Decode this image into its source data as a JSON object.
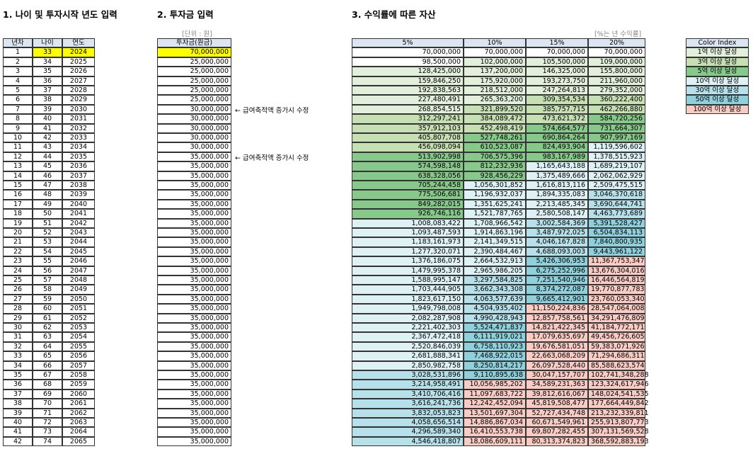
{
  "section1": {
    "title": "1. 나이 및 투자시작 년도 입력",
    "headers": [
      "년차",
      "나이",
      "연도"
    ],
    "rows": [
      [
        "1",
        "33",
        "2024"
      ],
      [
        "2",
        "34",
        "2025"
      ],
      [
        "3",
        "35",
        "2026"
      ],
      [
        "4",
        "36",
        "2027"
      ],
      [
        "5",
        "37",
        "2028"
      ],
      [
        "6",
        "38",
        "2029"
      ],
      [
        "7",
        "39",
        "2030"
      ],
      [
        "8",
        "40",
        "2031"
      ],
      [
        "9",
        "41",
        "2032"
      ],
      [
        "10",
        "42",
        "2033"
      ],
      [
        "11",
        "43",
        "2034"
      ],
      [
        "12",
        "44",
        "2035"
      ],
      [
        "13",
        "45",
        "2036"
      ],
      [
        "14",
        "46",
        "2037"
      ],
      [
        "15",
        "47",
        "2038"
      ],
      [
        "16",
        "48",
        "2039"
      ],
      [
        "17",
        "49",
        "2040"
      ],
      [
        "18",
        "50",
        "2041"
      ],
      [
        "19",
        "51",
        "2042"
      ],
      [
        "20",
        "52",
        "2043"
      ],
      [
        "21",
        "53",
        "2044"
      ],
      [
        "22",
        "54",
        "2045"
      ],
      [
        "23",
        "55",
        "2046"
      ],
      [
        "24",
        "56",
        "2047"
      ],
      [
        "25",
        "57",
        "2048"
      ],
      [
        "26",
        "58",
        "2049"
      ],
      [
        "27",
        "59",
        "2050"
      ],
      [
        "28",
        "60",
        "2051"
      ],
      [
        "29",
        "61",
        "2052"
      ],
      [
        "30",
        "62",
        "2053"
      ],
      [
        "31",
        "63",
        "2054"
      ],
      [
        "32",
        "64",
        "2055"
      ],
      [
        "33",
        "65",
        "2056"
      ],
      [
        "34",
        "66",
        "2057"
      ],
      [
        "35",
        "67",
        "2058"
      ],
      [
        "36",
        "68",
        "2059"
      ],
      [
        "37",
        "69",
        "2060"
      ],
      [
        "38",
        "70",
        "2061"
      ],
      [
        "39",
        "71",
        "2062"
      ],
      [
        "40",
        "72",
        "2063"
      ],
      [
        "41",
        "73",
        "2064"
      ],
      [
        "42",
        "74",
        "2065"
      ]
    ]
  },
  "section2": {
    "title": "2. 투자금 입력",
    "unit": "[단위 : 원]",
    "header": "투자금(원금)",
    "rows": [
      {
        "amount": "70,000,000"
      },
      {
        "amount": "25,000,000"
      },
      {
        "amount": "25,000,000"
      },
      {
        "amount": "25,000,000"
      },
      {
        "amount": "25,000,000"
      },
      {
        "amount": "25,000,000"
      },
      {
        "amount": "30,000,000",
        "note": "← 급여축적액 증가시 수정"
      },
      {
        "amount": "30,000,000"
      },
      {
        "amount": "30,000,000"
      },
      {
        "amount": "30,000,000"
      },
      {
        "amount": "30,000,000"
      },
      {
        "amount": "35,000,000",
        "note": "← 급여축적액 증가시 수정"
      },
      {
        "amount": "35,000,000"
      },
      {
        "amount": "35,000,000"
      },
      {
        "amount": "35,000,000"
      },
      {
        "amount": "35,000,000"
      },
      {
        "amount": "35,000,000"
      },
      {
        "amount": "35,000,000"
      },
      {
        "amount": "35,000,000"
      },
      {
        "amount": "35,000,000"
      },
      {
        "amount": "35,000,000"
      },
      {
        "amount": "35,000,000"
      },
      {
        "amount": "35,000,000"
      },
      {
        "amount": "35,000,000"
      },
      {
        "amount": "35,000,000"
      },
      {
        "amount": "35,000,000"
      },
      {
        "amount": "35,000,000"
      },
      {
        "amount": "35,000,000"
      },
      {
        "amount": "35,000,000"
      },
      {
        "amount": "35,000,000"
      },
      {
        "amount": "35,000,000"
      },
      {
        "amount": "35,000,000"
      },
      {
        "amount": "35,000,000"
      },
      {
        "amount": "35,000,000"
      },
      {
        "amount": "35,000,000"
      },
      {
        "amount": "35,000,000"
      },
      {
        "amount": "35,000,000"
      },
      {
        "amount": "35,000,000"
      },
      {
        "amount": "35,000,000"
      },
      {
        "amount": "35,000,000"
      },
      {
        "amount": "35,000,000"
      },
      {
        "amount": "35,000,000"
      }
    ]
  },
  "section3": {
    "title": "3. 수익률에 따른 자산",
    "unit": "[%는 년 수익률]",
    "headers": [
      "5%",
      "10%",
      "15%",
      "20%"
    ],
    "rows": [
      [
        "70,000,000",
        "70,000,000",
        "70,000,000",
        "70,000,000"
      ],
      [
        "98,500,000",
        "102,000,000",
        "105,500,000",
        "109,000,000"
      ],
      [
        "128,425,000",
        "137,200,000",
        "146,325,000",
        "155,800,000"
      ],
      [
        "159,846,250",
        "175,920,000",
        "193,273,750",
        "211,960,000"
      ],
      [
        "192,838,563",
        "218,512,000",
        "247,264,813",
        "279,352,000"
      ],
      [
        "227,480,491",
        "265,363,200",
        "309,354,534",
        "360,222,400"
      ],
      [
        "268,854,515",
        "321,899,520",
        "385,757,715",
        "462,266,880"
      ],
      [
        "312,297,241",
        "384,089,472",
        "473,621,372",
        "584,720,256"
      ],
      [
        "357,912,103",
        "452,498,419",
        "574,664,577",
        "731,664,307"
      ],
      [
        "405,807,708",
        "527,748,261",
        "690,864,264",
        "907,997,169"
      ],
      [
        "456,098,094",
        "610,523,087",
        "824,493,904",
        "1,119,596,602"
      ],
      [
        "513,902,998",
        "706,575,396",
        "983,167,989",
        "1,378,515,923"
      ],
      [
        "574,598,148",
        "812,232,936",
        "1,165,643,188",
        "1,689,219,107"
      ],
      [
        "638,328,056",
        "928,456,229",
        "1,375,489,666",
        "2,062,062,929"
      ],
      [
        "705,244,458",
        "1,056,301,852",
        "1,616,813,116",
        "2,509,475,515"
      ],
      [
        "775,506,681",
        "1,196,932,037",
        "1,894,335,083",
        "3,046,370,618"
      ],
      [
        "849,282,015",
        "1,351,625,241",
        "2,213,485,345",
        "3,690,644,741"
      ],
      [
        "926,746,116",
        "1,521,787,765",
        "2,580,508,147",
        "4,463,773,689"
      ],
      [
        "1,008,083,422",
        "1,708,966,542",
        "3,002,584,369",
        "5,391,528,427"
      ],
      [
        "1,093,487,593",
        "1,914,863,196",
        "3,487,972,025",
        "6,504,834,113"
      ],
      [
        "1,183,161,973",
        "2,141,349,515",
        "4,046,167,828",
        "7,840,800,935"
      ],
      [
        "1,277,320,071",
        "2,390,484,467",
        "4,688,093,003",
        "9,443,961,122"
      ],
      [
        "1,376,186,075",
        "2,664,532,913",
        "5,426,306,953",
        "11,367,753,347"
      ],
      [
        "1,479,995,378",
        "2,965,986,205",
        "6,275,252,996",
        "13,676,304,016"
      ],
      [
        "1,588,995,147",
        "3,297,584,825",
        "7,251,540,946",
        "16,446,564,819"
      ],
      [
        "1,703,444,905",
        "3,662,343,308",
        "8,374,272,087",
        "19,770,877,783"
      ],
      [
        "1,823,617,150",
        "4,063,577,639",
        "9,665,412,901",
        "23,760,053,340"
      ],
      [
        "1,949,798,008",
        "4,504,935,402",
        "11,150,224,836",
        "28,547,064,008"
      ],
      [
        "2,082,287,908",
        "4,990,428,943",
        "12,857,758,561",
        "34,291,476,809"
      ],
      [
        "2,221,402,303",
        "5,524,471,837",
        "14,821,422,345",
        "41,184,772,171"
      ],
      [
        "2,367,472,418",
        "6,111,919,021",
        "17,079,635,697",
        "49,456,726,605"
      ],
      [
        "2,520,846,039",
        "6,758,110,923",
        "19,676,581,051",
        "59,383,071,926"
      ],
      [
        "2,681,888,341",
        "7,468,922,015",
        "22,663,068,209",
        "71,294,686,311"
      ],
      [
        "2,850,982,758",
        "8,250,814,217",
        "26,097,528,440",
        "85,588,623,574"
      ],
      [
        "3,028,531,896",
        "9,110,895,638",
        "30,047,157,707",
        "102,741,348,288"
      ],
      [
        "3,214,958,491",
        "10,056,985,202",
        "34,589,231,363",
        "123,324,617,946"
      ],
      [
        "3,410,706,416",
        "11,097,683,722",
        "39,812,616,067",
        "148,024,541,535"
      ],
      [
        "3,616,241,736",
        "12,242,452,094",
        "45,819,508,477",
        "177,664,449,842"
      ],
      [
        "3,832,053,823",
        "13,501,697,304",
        "52,727,434,748",
        "213,232,339,811"
      ],
      [
        "4,058,656,514",
        "14,886,867,034",
        "60,671,549,961",
        "255,913,807,773"
      ],
      [
        "4,296,589,340",
        "16,410,553,738",
        "69,807,282,455",
        "307,131,569,528"
      ],
      [
        "4,546,418,807",
        "18,086,609,111",
        "80,313,374,823",
        "368,592,883,193"
      ]
    ]
  },
  "color_index": {
    "title": "Color Index",
    "items": [
      {
        "label": "1억 이상 달성",
        "color": "#e2efda"
      },
      {
        "label": "3억 이상 달성",
        "color": "#c6e0b4"
      },
      {
        "label": "5억 이상 달성",
        "color": "#86c98a"
      },
      {
        "label": "10억 이상 달성",
        "color": "#def1f5"
      },
      {
        "label": "30억 이상 달성",
        "color": "#b7e1ea"
      },
      {
        "label": "50억 이상 달성",
        "color": "#8fd0dd"
      },
      {
        "label": "100억 이상 달성",
        "color": "#f8cbc4"
      }
    ]
  }
}
